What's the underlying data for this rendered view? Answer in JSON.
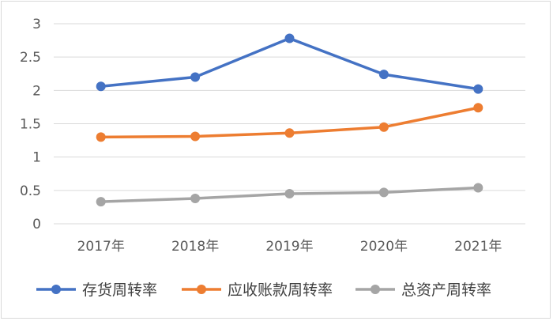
{
  "chart_data": {
    "type": "line",
    "categories": [
      "2017年",
      "2018年",
      "2019年",
      "2020年",
      "2021年"
    ],
    "series": [
      {
        "name": "存货周转率",
        "values": [
          2.06,
          2.2,
          2.78,
          2.24,
          2.02
        ],
        "color": "#4472c4"
      },
      {
        "name": "应收账款周转率",
        "values": [
          1.3,
          1.31,
          1.36,
          1.45,
          1.74
        ],
        "color": "#ed7d31"
      },
      {
        "name": "总资产周转率",
        "values": [
          0.33,
          0.38,
          0.45,
          0.47,
          0.54
        ],
        "color": "#a5a5a5"
      }
    ],
    "yticks": [
      "0",
      "0.5",
      "1",
      "1.5",
      "2",
      "2.5",
      "3"
    ],
    "ylim": [
      0,
      3
    ],
    "grid": true,
    "legend_position": "bottom",
    "gridline_color": "#d9d9d9"
  }
}
